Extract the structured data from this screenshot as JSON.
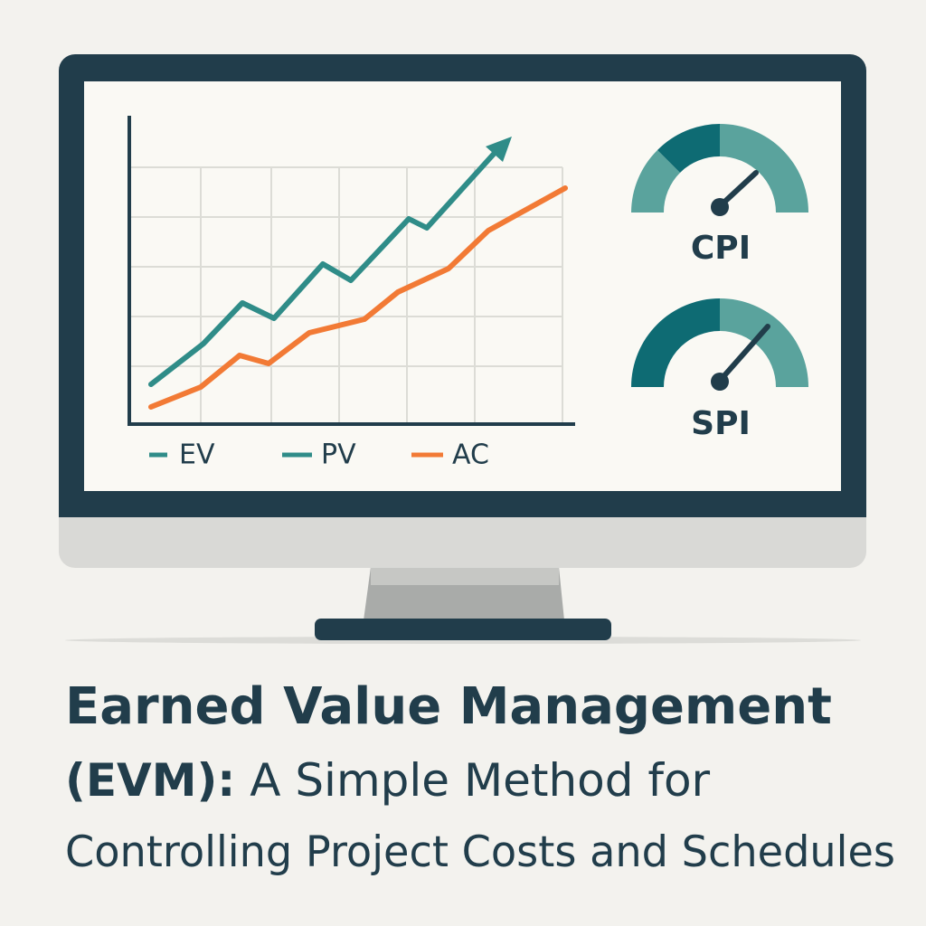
{
  "screen": {
    "legend": [
      "EV",
      "PV",
      "AC"
    ],
    "gauges": [
      "CPI",
      "SPI"
    ]
  },
  "title": {
    "line1": "Earned Value Management",
    "line2_bold": "(EVM):",
    "line2": "A Simple Method for",
    "line3": "Controlling Project Costs and Schedules"
  }
}
